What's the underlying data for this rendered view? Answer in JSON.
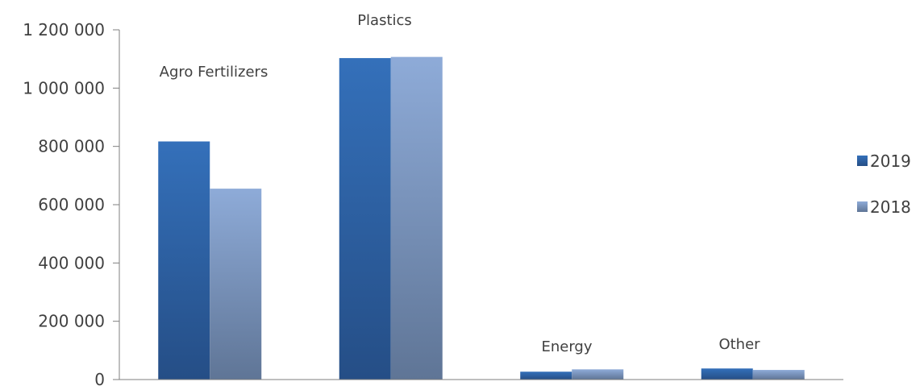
{
  "chart_data": {
    "type": "bar",
    "title": "",
    "xlabel": "",
    "ylabel": "",
    "ylim": [
      0,
      1200000
    ],
    "yticks": [
      0,
      200000,
      400000,
      600000,
      800000,
      1000000,
      1200000
    ],
    "ytick_labels": [
      "0",
      "200 000",
      "400 000",
      "600 000",
      "800 000",
      "1 000 000",
      "1 200 000"
    ],
    "grid": false,
    "legend_position": "right",
    "categories": [
      "Agro Fertilizers",
      "Plastics",
      "Energy",
      "Other"
    ],
    "series": [
      {
        "name": "2019",
        "color": "#2E64AE",
        "values": [
          817000,
          1103000,
          27000,
          38000
        ]
      },
      {
        "name": "2018",
        "color": "#88A6D3",
        "values": [
          655000,
          1107000,
          35000,
          33000
        ]
      }
    ]
  }
}
